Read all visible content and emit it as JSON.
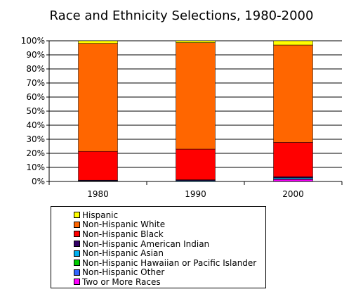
{
  "chart_data": {
    "type": "bar",
    "stacked": true,
    "title": "Race and Ethnicity Selections, 1980-2000",
    "categories": [
      "1980",
      "1990",
      "2000"
    ],
    "ylim": [
      0,
      100
    ],
    "yticks": [
      "0%",
      "10%",
      "20%",
      "30%",
      "40%",
      "50%",
      "60%",
      "70%",
      "80%",
      "90%",
      "100%"
    ],
    "ytick_values": [
      0,
      10,
      20,
      30,
      40,
      50,
      60,
      70,
      80,
      90,
      100
    ],
    "grid": true,
    "legend_position": "bottom",
    "series": [
      {
        "name": "Two or More Races",
        "color": "#ff00ff",
        "values": [
          0,
          0,
          1.5
        ]
      },
      {
        "name": "Non-Hispanic Other",
        "color": "#3366ff",
        "values": [
          0.2,
          0.2,
          0.3
        ]
      },
      {
        "name": "Non-Hispanic Hawaiian or Pacific Islander",
        "color": "#00cc00",
        "values": [
          0,
          0,
          0.1
        ]
      },
      {
        "name": "Non-Hispanic Asian",
        "color": "#00b0f0",
        "values": [
          0.3,
          0.5,
          0.8
        ]
      },
      {
        "name": "Non-Hispanic American Indian",
        "color": "#330066",
        "values": [
          0.4,
          0.5,
          0.7
        ]
      },
      {
        "name": "Non-Hispanic Black",
        "color": "#ff0000",
        "values": [
          20.5,
          21.8,
          24.4
        ]
      },
      {
        "name": "Non-Hispanic White",
        "color": "#ff6600",
        "values": [
          76.8,
          75.7,
          69.2
        ]
      },
      {
        "name": "Hispanic",
        "color": "#ffff00",
        "values": [
          1.8,
          1.3,
          3.0
        ]
      }
    ]
  },
  "legend": [
    {
      "label": "Hispanic",
      "color": "#ffff00"
    },
    {
      "label": "Non-Hispanic White",
      "color": "#ff6600"
    },
    {
      "label": "Non-Hispanic Black",
      "color": "#ff0000"
    },
    {
      "label": "Non-Hispanic American Indian",
      "color": "#330066"
    },
    {
      "label": "Non-Hispanic Asian",
      "color": "#00b0f0"
    },
    {
      "label": "Non-Hispanic Hawaiian or Pacific Islander",
      "color": "#00cc00"
    },
    {
      "label": "Non-Hispanic Other",
      "color": "#3366ff"
    },
    {
      "label": "Two or More Races",
      "color": "#ff00ff"
    }
  ]
}
